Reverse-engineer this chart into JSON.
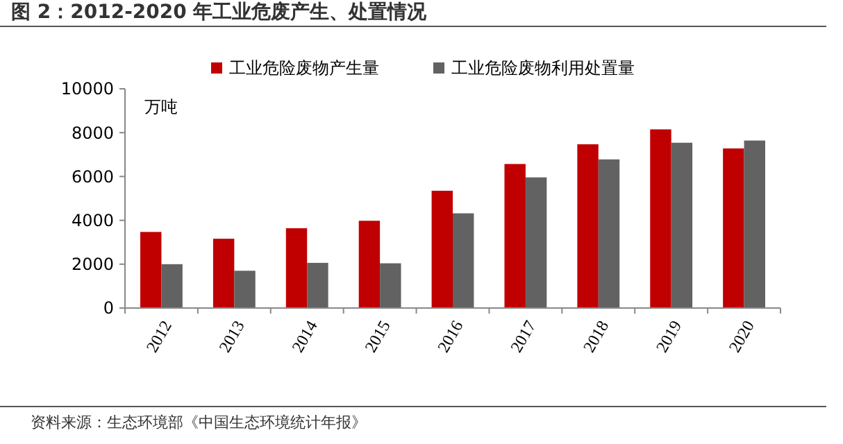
{
  "chart_data": {
    "type": "bar",
    "title": "图 2：2012-2020 年工业危废产生、处置情况",
    "ylabel": "万吨",
    "categories": [
      "2012",
      "2013",
      "2014",
      "2015",
      "2016",
      "2017",
      "2018",
      "2019",
      "2020"
    ],
    "series": [
      {
        "name": "工业危险废物产生量",
        "color": "#c00000",
        "values": [
          3470,
          3160,
          3640,
          3980,
          5350,
          6570,
          7470,
          8150,
          7280
        ]
      },
      {
        "name": "工业危险废物利用处置量",
        "color": "#626262",
        "values": [
          2000,
          1700,
          2060,
          2040,
          4320,
          5960,
          6780,
          7540,
          7640
        ]
      }
    ],
    "ylim": [
      0,
      10000
    ],
    "yticks": [
      0,
      2000,
      4000,
      6000,
      8000,
      10000
    ],
    "grid": false,
    "legend": "top",
    "annotations": [
      "资料来源：生态环境部《中国生态环境统计年报》"
    ]
  }
}
